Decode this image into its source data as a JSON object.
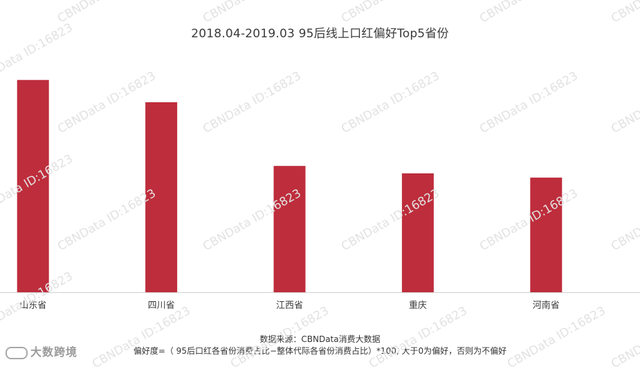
{
  "watermark_text": "CBNData ID:16823",
  "brand": {
    "name": "大数跨境"
  },
  "footer": {
    "source": "数据来源：CBNData消费大数据",
    "note": "偏好度=（ 95后口红各省份消费占比−整体代际各省份消费占比）*100, 大于0为偏好，否则为不偏好"
  },
  "colors": {
    "bar": "#be2d3c",
    "axis": "#d0d0d0",
    "text": "#3a3a3a"
  },
  "chart_data": {
    "type": "bar",
    "title": "2018.04-2019.03 95后线上口红偏好Top5省份",
    "categories": [
      "山东省",
      "四川省",
      "江西省",
      "重庆",
      "河南省"
    ],
    "values": [
      100,
      89.5,
      59.5,
      56,
      54
    ],
    "ylim": [
      0,
      110
    ],
    "grid": false,
    "legend": "none",
    "xlabel": "",
    "ylabel": ""
  }
}
